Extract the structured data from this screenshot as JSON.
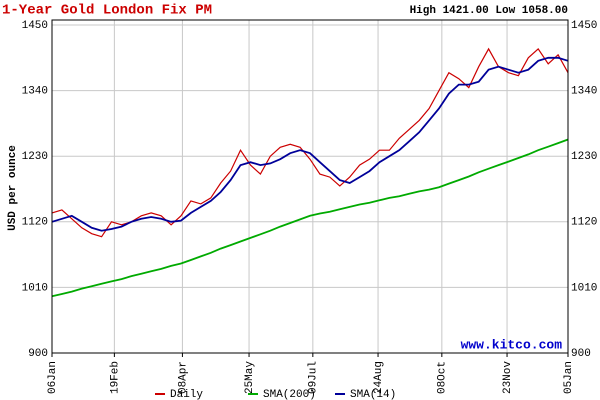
{
  "chart_data": {
    "type": "line",
    "title": "1-Year Gold London Fix PM",
    "subtitle": "High 1421.00 Low 1058.00",
    "y_label": "USD per ounce",
    "annotation": "www.kitco.com",
    "x": [
      0,
      7,
      14,
      21,
      28,
      35,
      42,
      49,
      56,
      63,
      70,
      77,
      84,
      91,
      98,
      105,
      112,
      119,
      126,
      133,
      140,
      147,
      154,
      161,
      168,
      175,
      182,
      189,
      196,
      203,
      210,
      217,
      224,
      231,
      238,
      245,
      252,
      259,
      266,
      273,
      280,
      287,
      294,
      301,
      308,
      315,
      322,
      329,
      336,
      343,
      350,
      357,
      364
    ],
    "xlim": [
      0,
      364
    ],
    "xticks": [
      {
        "value": 0,
        "label": "06Jan"
      },
      {
        "value": 44,
        "label": "19Feb"
      },
      {
        "value": 92,
        "label": "08Apr"
      },
      {
        "value": 139,
        "label": "25May"
      },
      {
        "value": 184,
        "label": "09Jul"
      },
      {
        "value": 230,
        "label": "24Aug"
      },
      {
        "value": 275,
        "label": "08Oct"
      },
      {
        "value": 321,
        "label": "23Nov"
      },
      {
        "value": 364,
        "label": "05Jan"
      }
    ],
    "ylim": [
      900,
      1450
    ],
    "yticks": [
      900,
      1010,
      1120,
      1230,
      1340,
      1450
    ],
    "grid": true,
    "legend": "bottom",
    "series": [
      {
        "name": "Daily",
        "color": "#cc0000",
        "values": [
          1135,
          1140,
          1125,
          1110,
          1100,
          1095,
          1120,
          1115,
          1120,
          1130,
          1135,
          1130,
          1115,
          1130,
          1155,
          1150,
          1160,
          1185,
          1205,
          1240,
          1215,
          1200,
          1230,
          1245,
          1250,
          1245,
          1225,
          1200,
          1195,
          1180,
          1195,
          1215,
          1225,
          1240,
          1240,
          1260,
          1275,
          1290,
          1310,
          1340,
          1370,
          1360,
          1345,
          1380,
          1410,
          1380,
          1370,
          1365,
          1395,
          1410,
          1385,
          1400,
          1370
        ]
      },
      {
        "name": "SMA(200)",
        "color": "#00aa00",
        "values": [
          995,
          999,
          1003,
          1008,
          1012,
          1016,
          1020,
          1024,
          1029,
          1033,
          1037,
          1041,
          1046,
          1050,
          1056,
          1062,
          1068,
          1075,
          1081,
          1087,
          1093,
          1099,
          1105,
          1112,
          1118,
          1124,
          1130,
          1134,
          1137,
          1141,
          1145,
          1149,
          1152,
          1156,
          1160,
          1163,
          1167,
          1171,
          1174,
          1178,
          1184,
          1190,
          1196,
          1203,
          1209,
          1215,
          1221,
          1227,
          1233,
          1240,
          1246,
          1252,
          1258
        ]
      },
      {
        "name": "SMA(14)",
        "color": "#000099",
        "values": [
          1120,
          1125,
          1130,
          1120,
          1110,
          1105,
          1108,
          1112,
          1120,
          1125,
          1128,
          1125,
          1120,
          1122,
          1135,
          1145,
          1155,
          1170,
          1190,
          1215,
          1220,
          1215,
          1218,
          1225,
          1235,
          1240,
          1235,
          1220,
          1205,
          1190,
          1185,
          1195,
          1205,
          1220,
          1230,
          1240,
          1255,
          1270,
          1290,
          1310,
          1335,
          1350,
          1350,
          1355,
          1375,
          1380,
          1375,
          1370,
          1375,
          1390,
          1395,
          1395,
          1390
        ]
      }
    ]
  }
}
